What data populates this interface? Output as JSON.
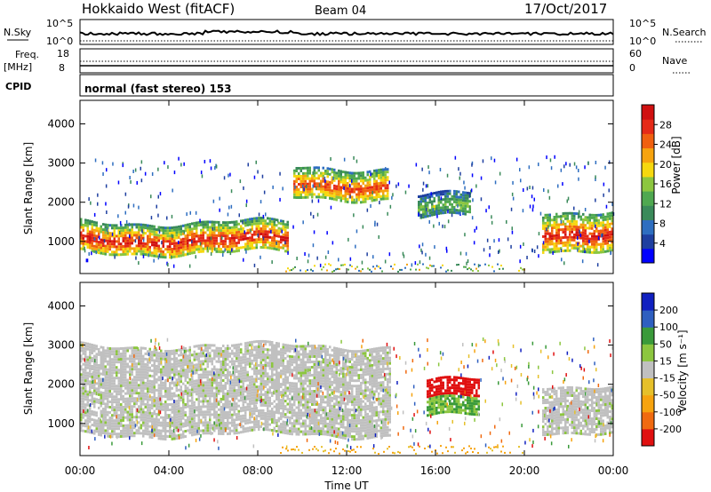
{
  "header": {
    "radar": "Hokkaido West (fitACF)",
    "beam": "Beam 04",
    "date": "17/Oct/2017"
  },
  "noise_panel": {
    "left_label": "N.Sky",
    "right_label": "N.Search",
    "left_ticks": [
      "10^5",
      "10^0"
    ],
    "right_ticks": [
      "10^5",
      "10^0"
    ]
  },
  "freq_panel": {
    "left_label_1": "Freq.",
    "left_label_2": "[MHz]",
    "left_ticks": [
      "18",
      "8"
    ],
    "right_label": "Nave",
    "right_ticks": [
      "60",
      "0"
    ],
    "cpid_label": "CPID",
    "cpid_text": "normal (fast stereo) 153"
  },
  "chart_data": [
    {
      "type": "heatmap",
      "title": "",
      "xlabel": "",
      "ylabel": "Slant Range [km]",
      "ylim": [
        180,
        4600
      ],
      "xlim": [
        0,
        24
      ],
      "y_ticks": [
        "1000",
        "2000",
        "3000",
        "4000"
      ],
      "colorbar": {
        "label": "Power [dB]",
        "range": [
          0,
          32
        ],
        "ticks": [
          "4",
          "8",
          "12",
          "16",
          "20",
          "24",
          "28"
        ],
        "colors": [
          "#0000ff",
          "#1e3fa0",
          "#2e6ec0",
          "#3a8a5a",
          "#4fa850",
          "#8cc63f",
          "#f6d80f",
          "#f6a30f",
          "#f06010",
          "#e52a18",
          "#d01010"
        ]
      },
      "bands": [
        {
          "name": "ionospheric",
          "t_start": 0,
          "t_end": 9.4,
          "range_km": [
            700,
            1500
          ],
          "peak_db": 28
        },
        {
          "name": "ionospheric",
          "t_start": 9.6,
          "t_end": 13.8,
          "range_km": [
            2100,
            2900
          ],
          "peak_db": 26
        },
        {
          "name": "ionospheric",
          "t_start": 15.2,
          "t_end": 17.6,
          "range_km": [
            1600,
            2200
          ],
          "peak_db": 14
        },
        {
          "name": "ionospheric",
          "t_start": 20.8,
          "t_end": 24,
          "range_km": [
            800,
            1800
          ],
          "peak_db": 28
        }
      ]
    },
    {
      "type": "heatmap",
      "title": "",
      "xlabel": "Time UT",
      "ylabel": "Slant Range [km]",
      "ylim": [
        180,
        4600
      ],
      "xlim": [
        0,
        24
      ],
      "x_ticks": [
        "00:00",
        "04:00",
        "08:00",
        "12:00",
        "16:00",
        "20:00",
        "00:00"
      ],
      "y_ticks": [
        "1000",
        "2000",
        "3000",
        "4000"
      ],
      "colorbar": {
        "label": "Velocity [m s⁻¹]",
        "range": [
          -250,
          250
        ],
        "ticks": [
          "200",
          "100",
          "50",
          "15",
          "-15",
          "-50",
          "-100",
          "-200"
        ],
        "colors": [
          "#e01010",
          "#f06a10",
          "#f6a30f",
          "#e6c02a",
          "#c0c0c0",
          "#8cc63f",
          "#3a9a3a",
          "#2e5fc0",
          "#1020c0"
        ]
      },
      "bands": [
        {
          "name": "low-velocity",
          "t_start": 0,
          "t_end": 14,
          "range_km": [
            700,
            3000
          ],
          "velocity": 0
        },
        {
          "name": "ionospheric",
          "t_start": 15.6,
          "t_end": 18.0,
          "range_km": [
            1200,
            2100
          ],
          "velocity": -200
        },
        {
          "name": "low-velocity",
          "t_start": 20.8,
          "t_end": 24,
          "range_km": [
            800,
            2000
          ],
          "velocity": 0
        }
      ]
    }
  ]
}
